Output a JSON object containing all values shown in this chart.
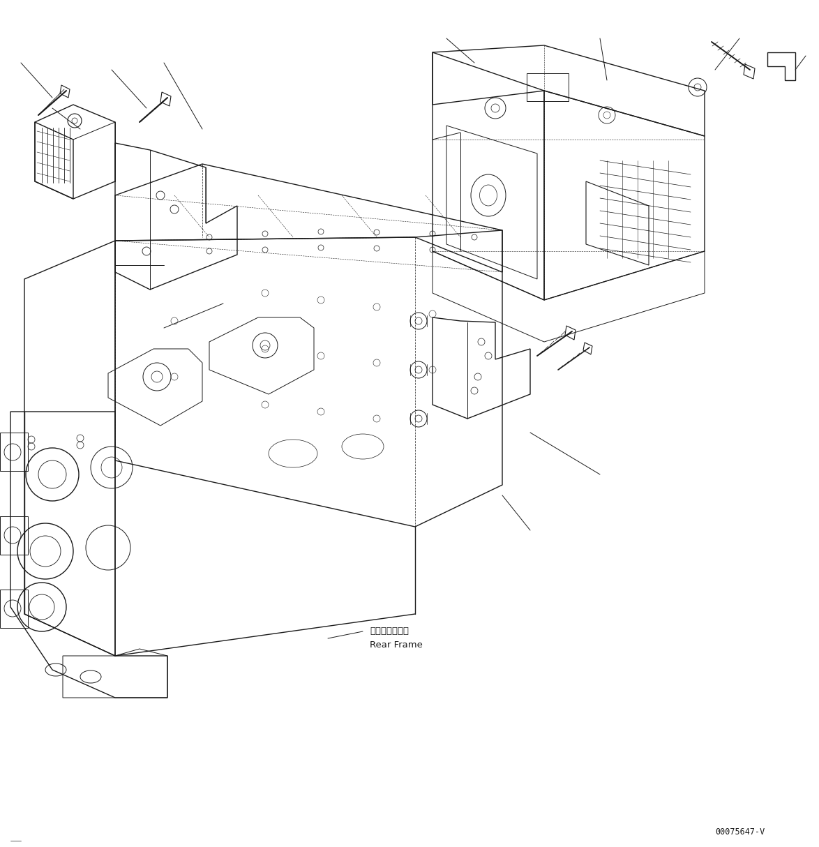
{
  "background_color": "#ffffff",
  "line_color": "#1a1a1a",
  "fig_width": 11.74,
  "fig_height": 12.14,
  "dpi": 100,
  "part_label_japanese": "リヤーフレーム",
  "part_label_english": "Rear Frame",
  "diagram_id": "00075647-V",
  "lw_main": 1.0,
  "lw_thin": 0.5,
  "lw_dash": 0.5
}
